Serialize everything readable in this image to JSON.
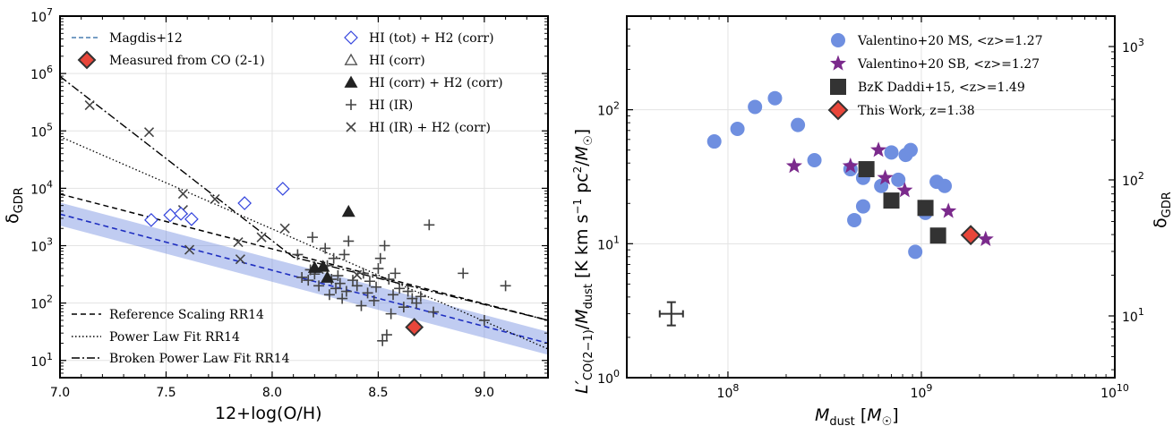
{
  "chart_data": [
    {
      "type": "scatter",
      "xlabel": "12+log(O/H)",
      "ylabel": "δGDR",
      "xlim": [
        7.0,
        9.3
      ],
      "ylim_log10": [
        0.7,
        7.0
      ],
      "x_ticks": [
        7.0,
        7.5,
        8.0,
        8.5,
        9.0
      ],
      "y_ticks": [
        "10^1",
        "10^2",
        "10^3",
        "10^4",
        "10^5",
        "10^6",
        "10^7"
      ],
      "y_tick_exps": [
        1,
        2,
        3,
        4,
        5,
        6,
        7
      ],
      "legend_upper_left": [
        {
          "label": "Magdis+12",
          "marker": "dashed-line",
          "color": "#4a7fb0"
        },
        {
          "label": "Measured from CO (2-1)",
          "marker": "red-diamond",
          "color": "#e8463a"
        }
      ],
      "legend_upper_right": [
        {
          "label": "HI (tot) + H2 (corr)",
          "marker": "open-diamond",
          "color": "#3344dd"
        },
        {
          "label": "HI (corr)",
          "marker": "open-triangle",
          "color": "#555555"
        },
        {
          "label": "HI (corr) + H2 (corr)",
          "marker": "filled-triangle",
          "color": "#222222"
        },
        {
          "label": "HI (IR)",
          "marker": "plus",
          "color": "#444444"
        },
        {
          "label": "HI (IR) + H2 (corr)",
          "marker": "cross",
          "color": "#444444"
        }
      ],
      "legend_lower_left": [
        {
          "label": "Reference Scaling RR14",
          "style": "dashed"
        },
        {
          "label": "Power Law Fit RR14",
          "style": "dotted"
        },
        {
          "label": "Broken Power Law Fit RR14",
          "style": "dashdot"
        }
      ],
      "magdis_line": {
        "x": [
          7.0,
          9.3
        ],
        "log_y": [
          3.55,
          1.3
        ],
        "band_half_width_dex": 0.2
      },
      "reference_scaling": {
        "x": [
          7.0,
          9.3
        ],
        "log_y": [
          3.9,
          1.7
        ]
      },
      "power_law": {
        "x": [
          7.0,
          9.3
        ],
        "log_y": [
          4.9,
          1.2
        ]
      },
      "broken_power_law": {
        "x": [
          7.0,
          8.1,
          9.3
        ],
        "log_y": [
          5.95,
          2.8,
          1.7
        ]
      },
      "measured_co21": [
        {
          "x": 8.67,
          "y": 38
        }
      ],
      "hi_tot_h2_corr": [
        {
          "x": 7.43,
          "y": 2800
        },
        {
          "x": 7.52,
          "y": 3400
        },
        {
          "x": 7.57,
          "y": 3600
        },
        {
          "x": 7.62,
          "y": 2900
        },
        {
          "x": 7.87,
          "y": 5500
        },
        {
          "x": 8.05,
          "y": 9800
        }
      ],
      "hi_corr_h2_corr": [
        {
          "x": 8.36,
          "y": 3800
        },
        {
          "x": 8.2,
          "y": 400
        },
        {
          "x": 8.24,
          "y": 420
        },
        {
          "x": 8.26,
          "y": 270
        }
      ],
      "hi_ir_h2_corr": [
        {
          "x": 7.14,
          "y": 280000
        },
        {
          "x": 7.42,
          "y": 95000
        },
        {
          "x": 7.58,
          "y": 8000
        },
        {
          "x": 7.58,
          "y": 4200
        },
        {
          "x": 7.61,
          "y": 850
        },
        {
          "x": 7.73,
          "y": 6500
        },
        {
          "x": 7.84,
          "y": 1150
        },
        {
          "x": 7.85,
          "y": 580
        },
        {
          "x": 7.95,
          "y": 1400
        },
        {
          "x": 8.06,
          "y": 2000
        },
        {
          "x": 8.22,
          "y": 390
        },
        {
          "x": 8.4,
          "y": 310
        }
      ],
      "hi_ir": [
        {
          "x": 8.12,
          "y": 700
        },
        {
          "x": 8.14,
          "y": 280
        },
        {
          "x": 8.17,
          "y": 250
        },
        {
          "x": 8.18,
          "y": 380
        },
        {
          "x": 8.19,
          "y": 1400
        },
        {
          "x": 8.2,
          "y": 320
        },
        {
          "x": 8.22,
          "y": 200
        },
        {
          "x": 8.25,
          "y": 900
        },
        {
          "x": 8.26,
          "y": 450
        },
        {
          "x": 8.27,
          "y": 140
        },
        {
          "x": 8.28,
          "y": 260
        },
        {
          "x": 8.29,
          "y": 600
        },
        {
          "x": 8.3,
          "y": 180
        },
        {
          "x": 8.31,
          "y": 300
        },
        {
          "x": 8.32,
          "y": 220
        },
        {
          "x": 8.33,
          "y": 120
        },
        {
          "x": 8.34,
          "y": 700
        },
        {
          "x": 8.35,
          "y": 160
        },
        {
          "x": 8.36,
          "y": 1200
        },
        {
          "x": 8.38,
          "y": 250
        },
        {
          "x": 8.4,
          "y": 200
        },
        {
          "x": 8.42,
          "y": 90
        },
        {
          "x": 8.43,
          "y": 330
        },
        {
          "x": 8.45,
          "y": 150
        },
        {
          "x": 8.46,
          "y": 240
        },
        {
          "x": 8.48,
          "y": 110
        },
        {
          "x": 8.49,
          "y": 190
        },
        {
          "x": 8.5,
          "y": 400
        },
        {
          "x": 8.51,
          "y": 600
        },
        {
          "x": 8.52,
          "y": 22
        },
        {
          "x": 8.53,
          "y": 1000
        },
        {
          "x": 8.54,
          "y": 28
        },
        {
          "x": 8.55,
          "y": 260
        },
        {
          "x": 8.56,
          "y": 65
        },
        {
          "x": 8.57,
          "y": 140
        },
        {
          "x": 8.58,
          "y": 330
        },
        {
          "x": 8.6,
          "y": 180
        },
        {
          "x": 8.62,
          "y": 85
        },
        {
          "x": 8.64,
          "y": 160
        },
        {
          "x": 8.66,
          "y": 120
        },
        {
          "x": 8.68,
          "y": 100
        },
        {
          "x": 8.7,
          "y": 130
        },
        {
          "x": 8.74,
          "y": 2300
        },
        {
          "x": 8.76,
          "y": 70
        },
        {
          "x": 8.9,
          "y": 330
        },
        {
          "x": 9.0,
          "y": 50
        },
        {
          "x": 9.1,
          "y": 200
        }
      ]
    },
    {
      "type": "scatter",
      "xlabel": "Mdust [M⊙]",
      "ylabel_left": "L'CO(2−1)/Mdust [K km s⁻¹ pc²/M⊙]",
      "ylabel_right": "δGDR",
      "x_scale": "log",
      "xlim": [
        30000000.0,
        10000000000.0
      ],
      "y_scale": "log",
      "ylim": [
        1,
        500
      ],
      "x_ticks": [
        "10^8",
        "10^9",
        "10^10"
      ],
      "x_tick_exps": [
        8,
        9,
        10
      ],
      "y_ticks_left": [
        "10^0",
        "10^1",
        "10^2"
      ],
      "y_tick_exps_left": [
        0,
        1,
        2
      ],
      "y_ticks_right": [
        "10^1",
        "10^2",
        "10^3"
      ],
      "y_tick_exps_right": [
        1,
        2,
        3
      ],
      "legend": [
        {
          "label": "Valentino+20 MS, <z>=1.27",
          "marker": "circle",
          "color": "#6f8fe0"
        },
        {
          "label": "Valentino+20 SB, <z>=1.27",
          "marker": "star",
          "color": "#7b2a8c"
        },
        {
          "label": "BzK Daddi+15, <z>=1.49",
          "marker": "square",
          "color": "#333333"
        },
        {
          "label": "This Work, z=1.38",
          "marker": "red-diamond",
          "color": "#e8463a"
        }
      ],
      "valentino_ms": [
        {
          "x": 85000000.0,
          "y": 58
        },
        {
          "x": 112000000.0,
          "y": 72
        },
        {
          "x": 138000000.0,
          "y": 105
        },
        {
          "x": 175000000.0,
          "y": 122
        },
        {
          "x": 230000000.0,
          "y": 77
        },
        {
          "x": 280000000.0,
          "y": 42
        },
        {
          "x": 430000000.0,
          "y": 36
        },
        {
          "x": 450000000.0,
          "y": 15
        },
        {
          "x": 500000000.0,
          "y": 19
        },
        {
          "x": 500000000.0,
          "y": 31
        },
        {
          "x": 620000000.0,
          "y": 27
        },
        {
          "x": 700000000.0,
          "y": 48
        },
        {
          "x": 760000000.0,
          "y": 30
        },
        {
          "x": 830000000.0,
          "y": 46
        },
        {
          "x": 880000000.0,
          "y": 50
        },
        {
          "x": 930000000.0,
          "y": 8.7
        },
        {
          "x": 1050000000.0,
          "y": 17
        },
        {
          "x": 1200000000.0,
          "y": 29
        },
        {
          "x": 1320000000.0,
          "y": 27
        }
      ],
      "valentino_sb": [
        {
          "x": 220000000.0,
          "y": 38
        },
        {
          "x": 430000000.0,
          "y": 38
        },
        {
          "x": 600000000.0,
          "y": 50
        },
        {
          "x": 650000000.0,
          "y": 31
        },
        {
          "x": 820000000.0,
          "y": 25
        },
        {
          "x": 1380000000.0,
          "y": 17.5
        },
        {
          "x": 2150000000.0,
          "y": 10.8
        }
      ],
      "bzk_daddi": [
        {
          "x": 520000000.0,
          "y": 36
        },
        {
          "x": 700000000.0,
          "y": 21
        },
        {
          "x": 1050000000.0,
          "y": 18.5
        },
        {
          "x": 1220000000.0,
          "y": 11.5
        }
      ],
      "this_work": [
        {
          "x": 1800000000.0,
          "y": 11.6
        }
      ],
      "typical_error": {
        "x": 51000000.0,
        "y": 3.0
      }
    }
  ]
}
